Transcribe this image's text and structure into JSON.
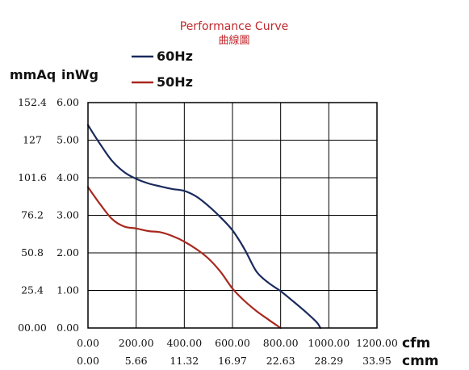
{
  "chart_data": {
    "type": "line",
    "title": "Performance Curve",
    "subtitle": "曲線圖",
    "y_units": {
      "primary": "mmAq",
      "secondary": "inWg"
    },
    "x_units": {
      "primary": "cfm",
      "secondary": "cmm"
    },
    "xlim": [
      0,
      1200
    ],
    "ylim": [
      0,
      6
    ],
    "x_ticks": [
      0,
      200,
      400,
      600,
      800,
      1000,
      1200
    ],
    "y_ticks": [
      0,
      1,
      2,
      3,
      4,
      5,
      6
    ],
    "x_tick_labels": [
      "0.00",
      "200.00",
      "400.00",
      "600.00",
      "800.00",
      "1000.00",
      "1200.00"
    ],
    "x2_tick_labels": [
      "0.00",
      "5.66",
      "11.32",
      "16.97",
      "22.63",
      "28.29",
      "33.95"
    ],
    "y_tick_labels": [
      "0.00",
      "1.00",
      "2.00",
      "3.00",
      "4.00",
      "5.00",
      "6.00"
    ],
    "y2_tick_labels": [
      "00.00",
      "25.4",
      "50.8",
      "76.2",
      "101.6",
      "127",
      "152.4"
    ],
    "grid": true,
    "legend_position": "top-left",
    "series": [
      {
        "name": "60Hz",
        "color": "#1a2a5c",
        "points": [
          [
            0,
            5.4
          ],
          [
            50,
            4.9
          ],
          [
            100,
            4.45
          ],
          [
            150,
            4.15
          ],
          [
            200,
            3.97
          ],
          [
            250,
            3.85
          ],
          [
            300,
            3.77
          ],
          [
            350,
            3.7
          ],
          [
            400,
            3.65
          ],
          [
            450,
            3.5
          ],
          [
            500,
            3.25
          ],
          [
            550,
            2.95
          ],
          [
            600,
            2.6
          ],
          [
            650,
            2.1
          ],
          [
            700,
            1.5
          ],
          [
            750,
            1.2
          ],
          [
            800,
            0.98
          ],
          [
            850,
            0.72
          ],
          [
            900,
            0.45
          ],
          [
            950,
            0.15
          ],
          [
            965,
            0.0
          ]
        ]
      },
      {
        "name": "50Hz",
        "color": "#a8281e",
        "points": [
          [
            0,
            3.75
          ],
          [
            50,
            3.3
          ],
          [
            100,
            2.9
          ],
          [
            150,
            2.7
          ],
          [
            200,
            2.65
          ],
          [
            250,
            2.58
          ],
          [
            300,
            2.55
          ],
          [
            350,
            2.45
          ],
          [
            400,
            2.3
          ],
          [
            450,
            2.1
          ],
          [
            500,
            1.85
          ],
          [
            550,
            1.5
          ],
          [
            600,
            1.05
          ],
          [
            650,
            0.72
          ],
          [
            700,
            0.45
          ],
          [
            750,
            0.22
          ],
          [
            800,
            0.0
          ]
        ]
      }
    ]
  }
}
